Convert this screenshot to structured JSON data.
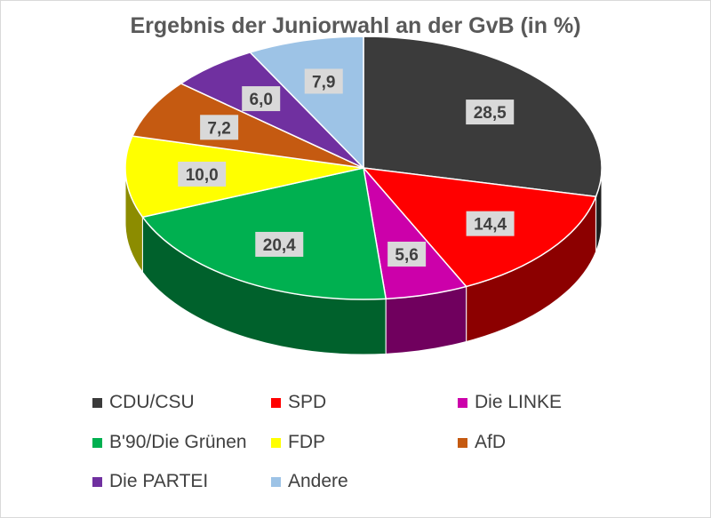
{
  "chart_data": {
    "type": "pie",
    "title": "Ergebnis der Juniorwahl an der GvB (in %)",
    "categories": [
      "CDU/CSU",
      "SPD",
      "Die LINKE",
      "B'90/Die Grünen",
      "FDP",
      "AfD",
      "Die PARTEI",
      "Andere"
    ],
    "values": [
      28.5,
      14.4,
      5.6,
      20.4,
      10.0,
      7.2,
      6.0,
      7.9
    ],
    "labels": [
      "28,5",
      "14,4",
      "5,6",
      "20,4",
      "10,0",
      "7,2",
      "6,0",
      "7,9"
    ],
    "colors": [
      "#3b3b3b",
      "#ff0000",
      "#cc00aa",
      "#00b050",
      "#ffff00",
      "#c55a11",
      "#7030a0",
      "#9dc3e6"
    ],
    "legend_position": "bottom",
    "style": "3d"
  }
}
